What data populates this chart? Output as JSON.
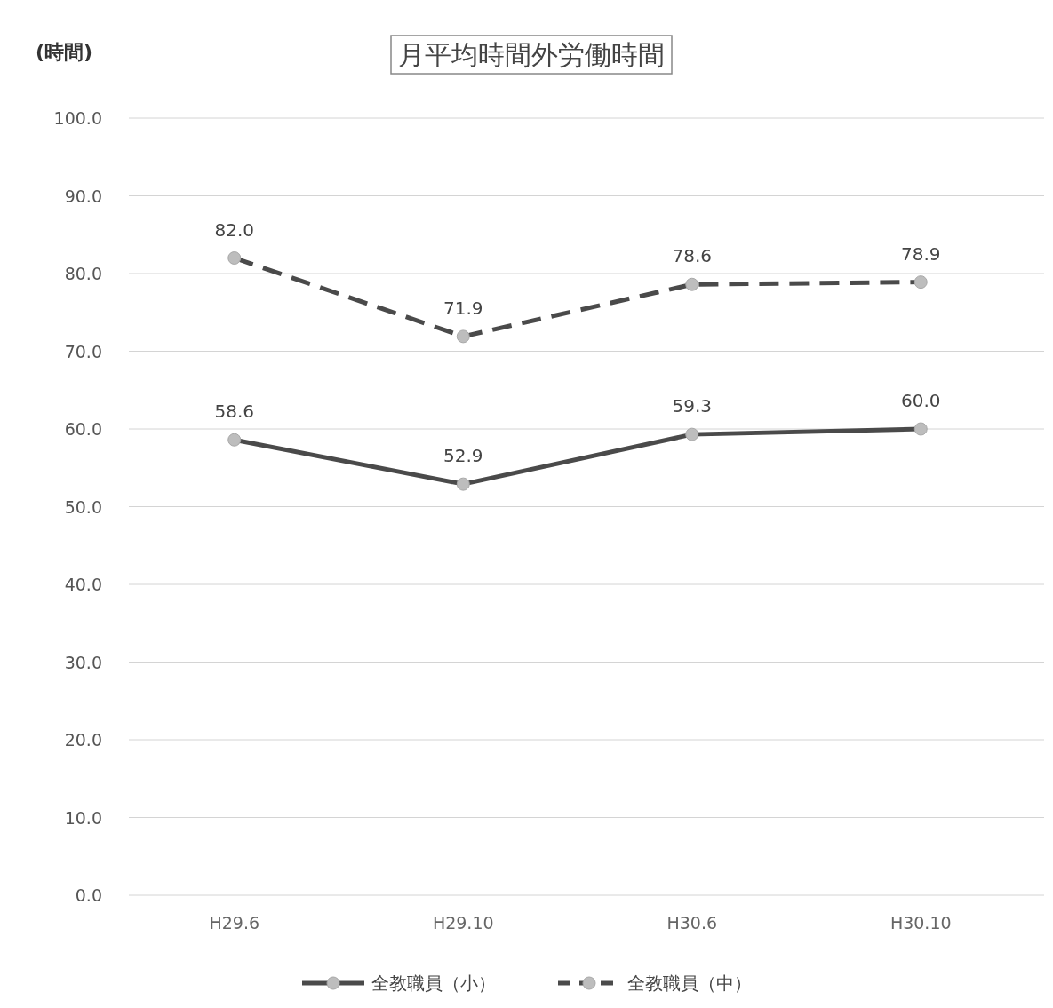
{
  "chart_data": {
    "type": "line",
    "title": "月平均時間外労働時間",
    "ylabel": "(時間)",
    "categories": [
      "H29.6",
      "H29.10",
      "H30.6",
      "H30.10"
    ],
    "series": [
      {
        "name": "全教職員（小）",
        "color": "#4a4a4a",
        "line_style": "solid",
        "values": [
          58.6,
          52.9,
          59.3,
          60.0
        ],
        "value_labels": [
          "58.6",
          "52.9",
          "59.3",
          "60.0"
        ]
      },
      {
        "name": "全教職員（中）",
        "color": "#4a4a4a",
        "line_style": "dashed",
        "values": [
          82.0,
          71.9,
          78.6,
          78.9
        ],
        "value_labels": [
          "82.0",
          "71.9",
          "78.6",
          "78.9"
        ]
      }
    ],
    "ylim": [
      0,
      100
    ],
    "yticks": [
      {
        "value": 0,
        "label": "0.0"
      },
      {
        "value": 10,
        "label": "10.0"
      },
      {
        "value": 20,
        "label": "20.0"
      },
      {
        "value": 30,
        "label": "30.0"
      },
      {
        "value": 40,
        "label": "40.0"
      },
      {
        "value": 50,
        "label": "50.0"
      },
      {
        "value": 60,
        "label": "60.0"
      },
      {
        "value": 70,
        "label": "70.0"
      },
      {
        "value": 80,
        "label": "80.0"
      },
      {
        "value": 90,
        "label": "90.0"
      },
      {
        "value": 100,
        "label": "100.0"
      }
    ],
    "grid": "y",
    "legend": "bottom",
    "marker": "circle"
  }
}
